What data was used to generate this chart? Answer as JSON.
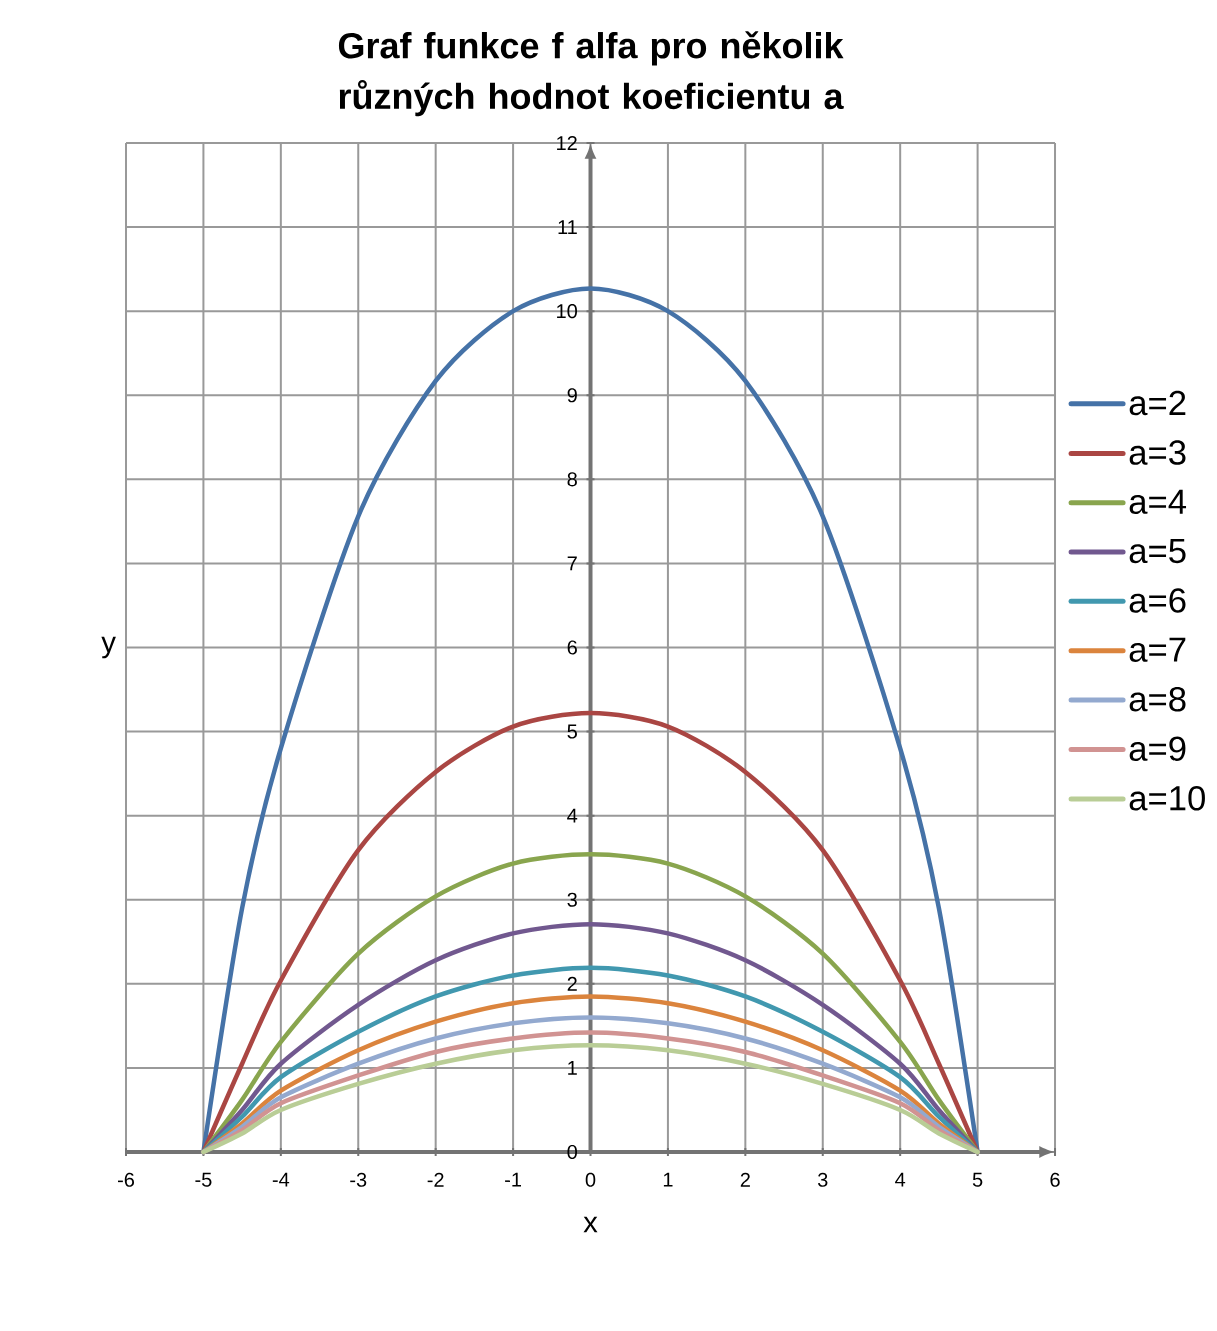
{
  "chart_data": {
    "type": "line",
    "title": "Graf funkce f alfa pro několik různých hodnot koeficientu a",
    "xlabel": "x",
    "ylabel": "y",
    "x": [
      -5,
      -4.5,
      -4,
      -3,
      -2,
      -1,
      0,
      1,
      2,
      3,
      4,
      4.5,
      5
    ],
    "series": [
      {
        "name": "a=2",
        "color": "#4572a7",
        "values": [
          0,
          2.9,
          4.8,
          7.56,
          9.17,
          10.0,
          10.27,
          10.0,
          9.17,
          7.56,
          4.8,
          2.9,
          0
        ]
      },
      {
        "name": "a=3",
        "color": "#aa4643",
        "values": [
          0,
          1.05,
          2.04,
          3.59,
          4.52,
          5.06,
          5.22,
          5.06,
          4.52,
          3.59,
          2.04,
          1.05,
          0
        ]
      },
      {
        "name": "a=4",
        "color": "#89a54e",
        "values": [
          0,
          0.62,
          1.31,
          2.36,
          3.04,
          3.43,
          3.54,
          3.43,
          3.04,
          2.36,
          1.31,
          0.62,
          0
        ]
      },
      {
        "name": "a=5",
        "color": "#71588f",
        "values": [
          0,
          0.5,
          1.05,
          1.75,
          2.28,
          2.6,
          2.71,
          2.6,
          2.28,
          1.75,
          1.05,
          0.5,
          0
        ]
      },
      {
        "name": "a=6",
        "color": "#4198af",
        "values": [
          0,
          0.42,
          0.89,
          1.43,
          1.85,
          2.1,
          2.19,
          2.1,
          1.85,
          1.43,
          0.89,
          0.42,
          0
        ]
      },
      {
        "name": "a=7",
        "color": "#db843d",
        "values": [
          0,
          0.34,
          0.73,
          1.21,
          1.55,
          1.77,
          1.85,
          1.77,
          1.55,
          1.21,
          0.73,
          0.34,
          0
        ]
      },
      {
        "name": "a=8",
        "color": "#93a9cf",
        "values": [
          0,
          0.3,
          0.65,
          1.05,
          1.35,
          1.53,
          1.6,
          1.53,
          1.35,
          1.05,
          0.65,
          0.3,
          0
        ]
      },
      {
        "name": "a=9",
        "color": "#d19392",
        "values": [
          0,
          0.26,
          0.58,
          0.91,
          1.19,
          1.35,
          1.42,
          1.35,
          1.19,
          0.91,
          0.58,
          0.26,
          0
        ]
      },
      {
        "name": "a=10",
        "color": "#b9cd96",
        "values": [
          0,
          0.22,
          0.5,
          0.81,
          1.05,
          1.21,
          1.27,
          1.21,
          1.05,
          0.81,
          0.5,
          0.22,
          0
        ]
      }
    ],
    "xlim": [
      -6,
      6
    ],
    "ylim": [
      0,
      12
    ],
    "xticks": [
      -6,
      -5,
      -4,
      -3,
      -2,
      -1,
      0,
      1,
      2,
      3,
      4,
      5,
      6
    ],
    "yticks": [
      0,
      1,
      2,
      3,
      4,
      5,
      6,
      7,
      8,
      9,
      10,
      11,
      12
    ],
    "grid": true,
    "legend": "right",
    "marker": "none",
    "line_style": "solid"
  }
}
